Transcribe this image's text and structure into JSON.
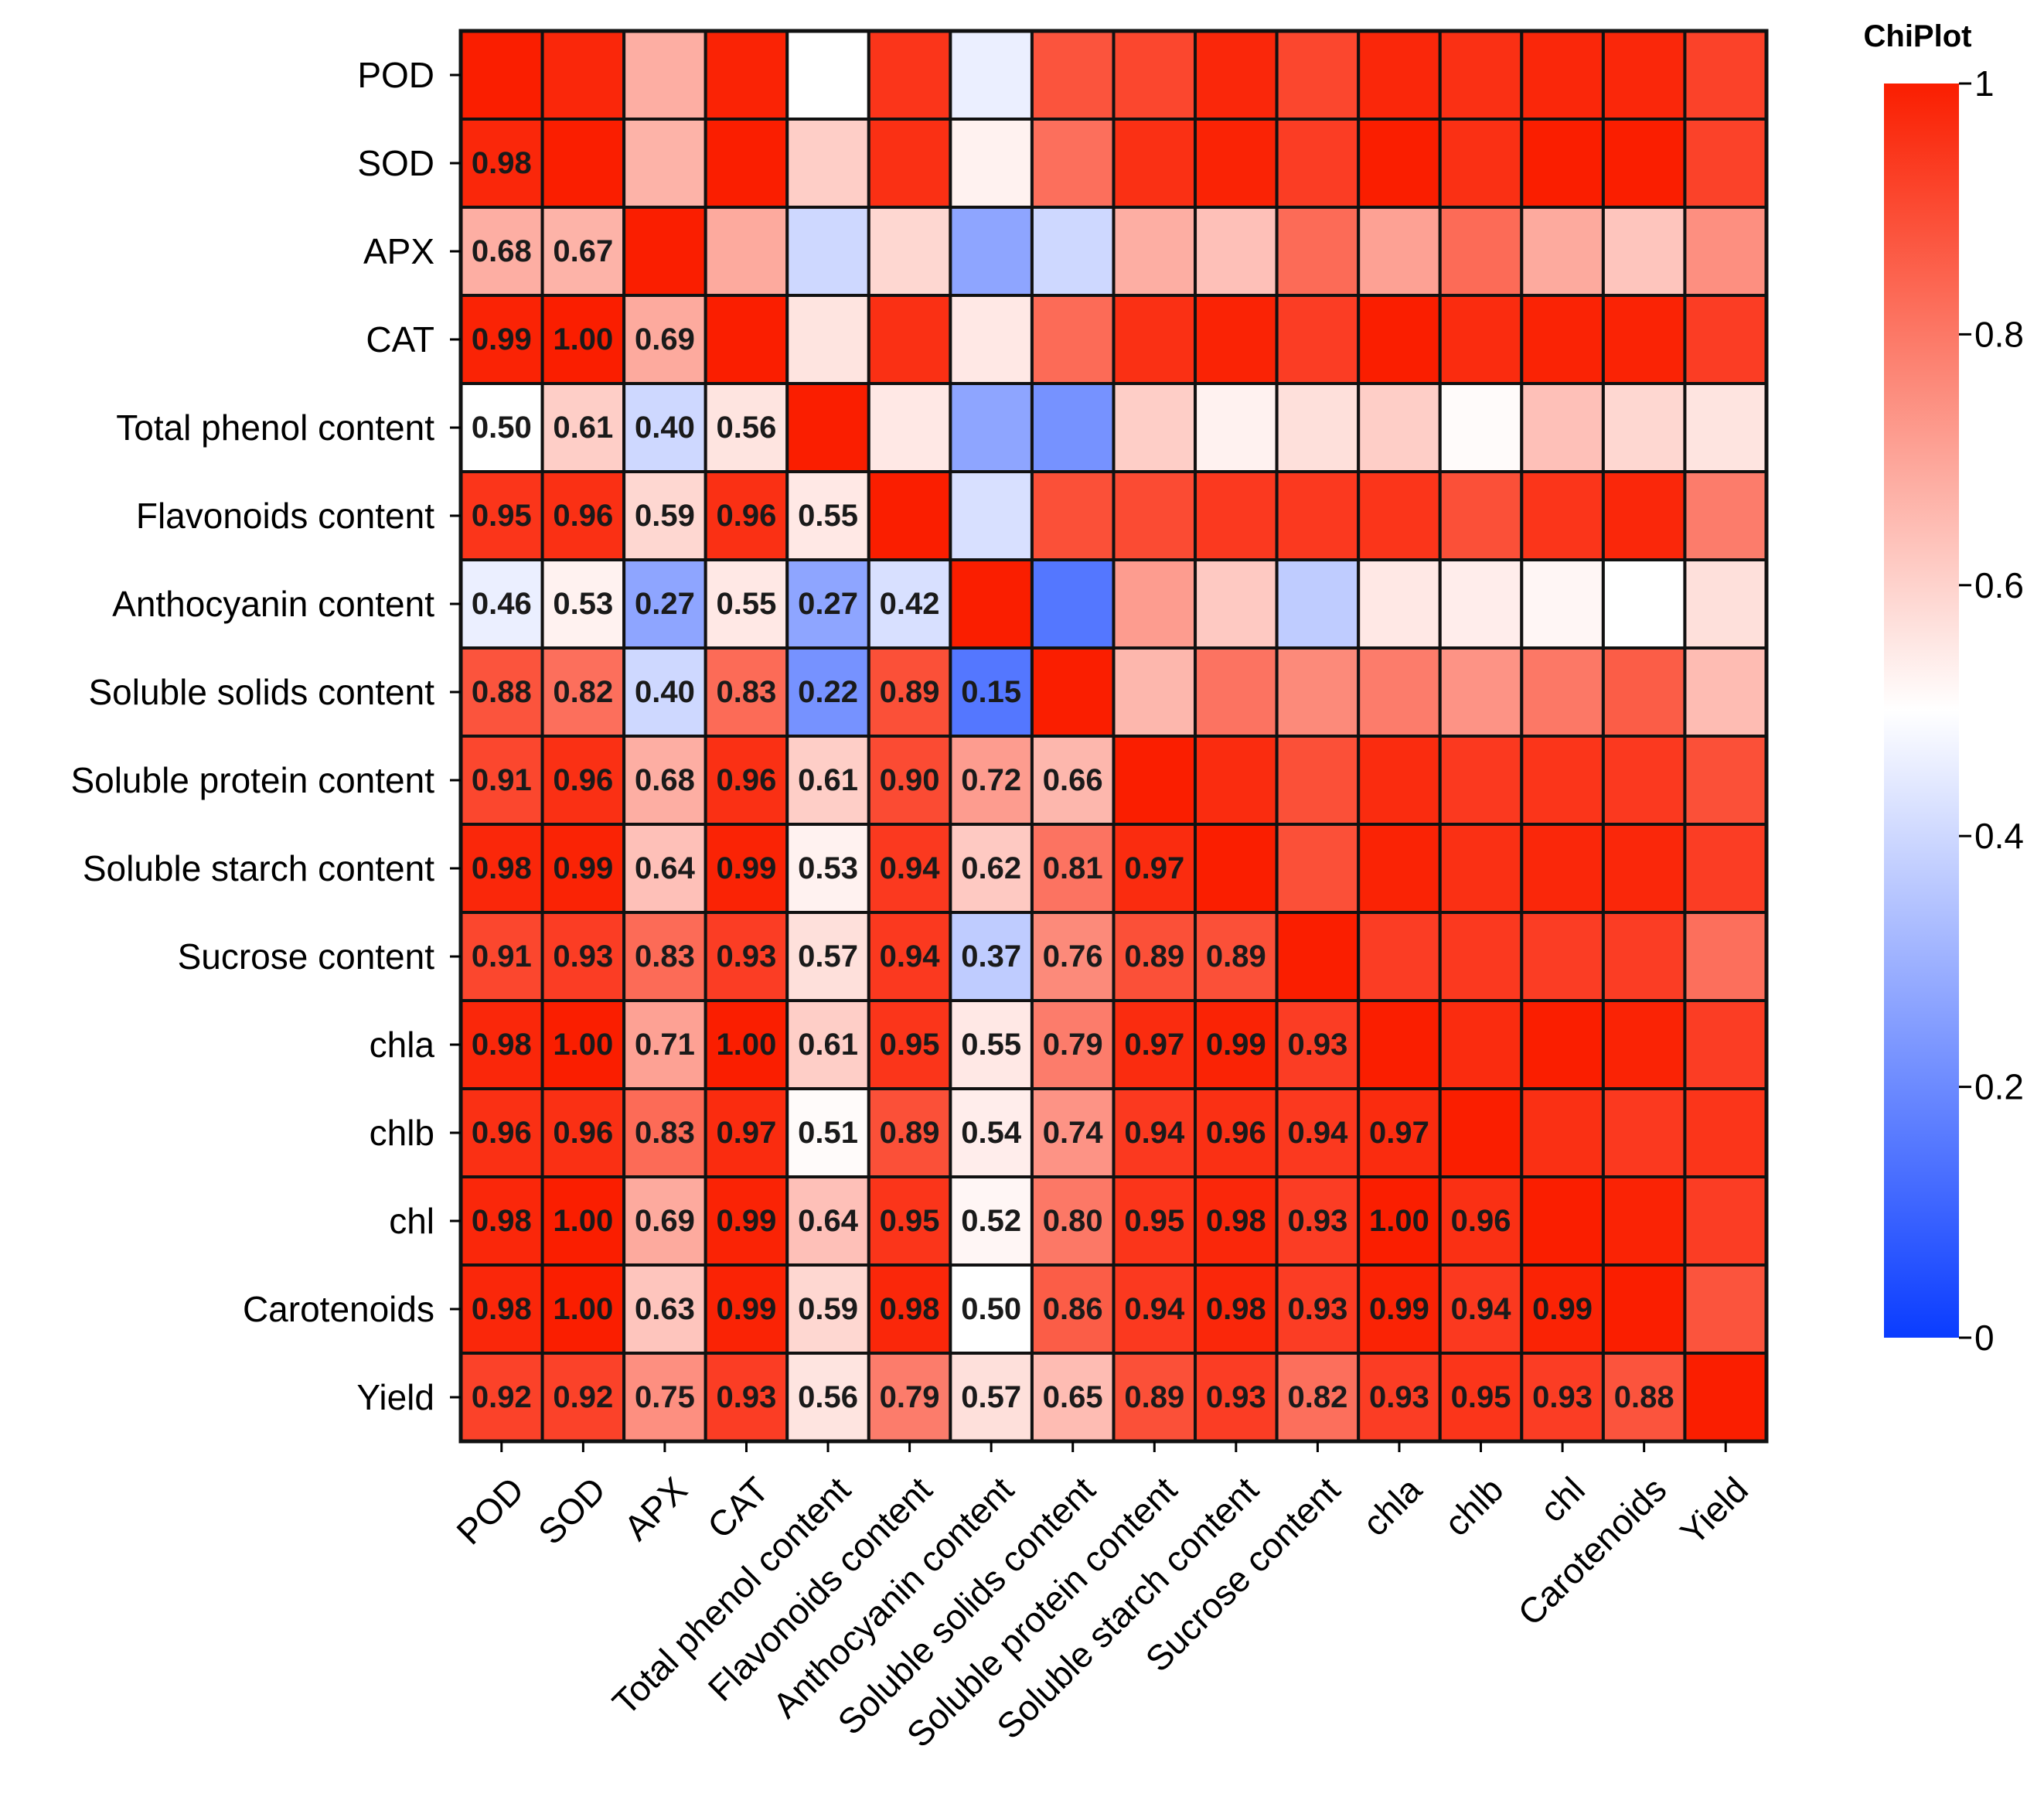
{
  "chart_data": {
    "type": "heatmap",
    "title": "",
    "variables": [
      "POD",
      "SOD",
      "APX",
      "CAT",
      "Total phenol content",
      "Flavonoids content",
      "Anthocyanin content",
      "Soluble solids content",
      "Soluble protein content",
      "Soluble starch content",
      "Sucrose content",
      "chla",
      "chlb",
      "chl",
      "Carotenoids",
      "Yield"
    ],
    "row_labels": [
      "POD",
      "SOD",
      "APX",
      "CAT",
      "Total phenol content",
      "Flavonoids content ",
      "Anthocyanin content",
      "Soluble solids content",
      "Soluble protein content",
      "Soluble starch content",
      "Sucrose content",
      "chla",
      "chlb",
      "chl",
      "Carotenoids",
      "Yield"
    ],
    "column_labels": [
      "POD",
      "SOD",
      "APX",
      "CAT",
      "Total phenol content",
      "Flavonoids content",
      "Anthocyanin content",
      "Soluble solids content",
      "Soluble protein content",
      "Soluble starch content",
      "Sucrose content",
      "chla",
      "chlb",
      "chl",
      "Carotenoids",
      "Yield"
    ],
    "lower_triangle_labels": [
      [],
      [
        "0.98"
      ],
      [
        "0.68",
        "0.67"
      ],
      [
        "0.99",
        "1.00",
        "0.69"
      ],
      [
        "0.50",
        "0.61",
        "0.40",
        "0.56"
      ],
      [
        "0.95",
        "0.96",
        "0.59",
        "0.96",
        "0.55"
      ],
      [
        "0.46",
        "0.53",
        "0.27",
        "0.55",
        "0.27",
        "0.42"
      ],
      [
        "0.88",
        "0.82",
        "0.40",
        "0.83",
        "0.22",
        "0.89",
        "0.15"
      ],
      [
        "0.91",
        "0.96",
        "0.68",
        "0.96",
        "0.61",
        "0.90",
        "0.72",
        "0.66"
      ],
      [
        "0.98",
        "0.99",
        "0.64",
        "0.99",
        "0.53",
        "0.94",
        "0.62",
        "0.81",
        "0.97"
      ],
      [
        "0.91",
        "0.93",
        "0.83",
        "0.93",
        "0.57",
        "0.94",
        "0.37",
        "0.76",
        "0.89",
        "0.89"
      ],
      [
        "0.98",
        "1.00",
        "0.71",
        "1.00",
        "0.61",
        "0.95",
        "0.55",
        "0.79",
        "0.97",
        "0.99",
        "0.93"
      ],
      [
        "0.96",
        "0.96",
        "0.83",
        "0.97",
        "0.51",
        "0.89",
        "0.54",
        "0.74",
        "0.94",
        "0.96",
        "0.94",
        "0.97"
      ],
      [
        "0.98",
        "1.00",
        "0.69",
        "0.99",
        "0.64",
        "0.95",
        "0.52",
        "0.80",
        "0.95",
        "0.98",
        "0.93",
        "1.00",
        "0.96"
      ],
      [
        "0.98",
        "1.00",
        "0.63",
        "0.99",
        "0.59",
        "0.98",
        "0.50",
        "0.86",
        "0.94",
        "0.98",
        "0.93",
        "0.99",
        "0.94",
        "0.99"
      ],
      [
        "0.92",
        "0.92",
        "0.75",
        "0.93",
        "0.56",
        "0.79",
        "0.57",
        "0.65",
        "0.89",
        "0.93",
        "0.82",
        "0.93",
        "0.95",
        "0.93",
        "0.88"
      ]
    ],
    "diagonal_value": 1,
    "value_range": [
      0,
      1
    ],
    "colorscale": [
      {
        "value": 0,
        "color": "#0a3cff"
      },
      {
        "value": 0.5,
        "color": "#ffffff"
      },
      {
        "value": 1,
        "color": "#fa1e00"
      }
    ],
    "legend": {
      "title": "ChiPlot",
      "ticks": [
        "0",
        "0.2",
        "0.4",
        "0.6",
        "0.8",
        "1"
      ],
      "tick_values": [
        0,
        0.2,
        0.4,
        0.6,
        0.8,
        1
      ],
      "placement": "right"
    },
    "cell_border_color": "#111111",
    "show_upper_triangle_labels": false,
    "show_lower_triangle_labels": true
  }
}
